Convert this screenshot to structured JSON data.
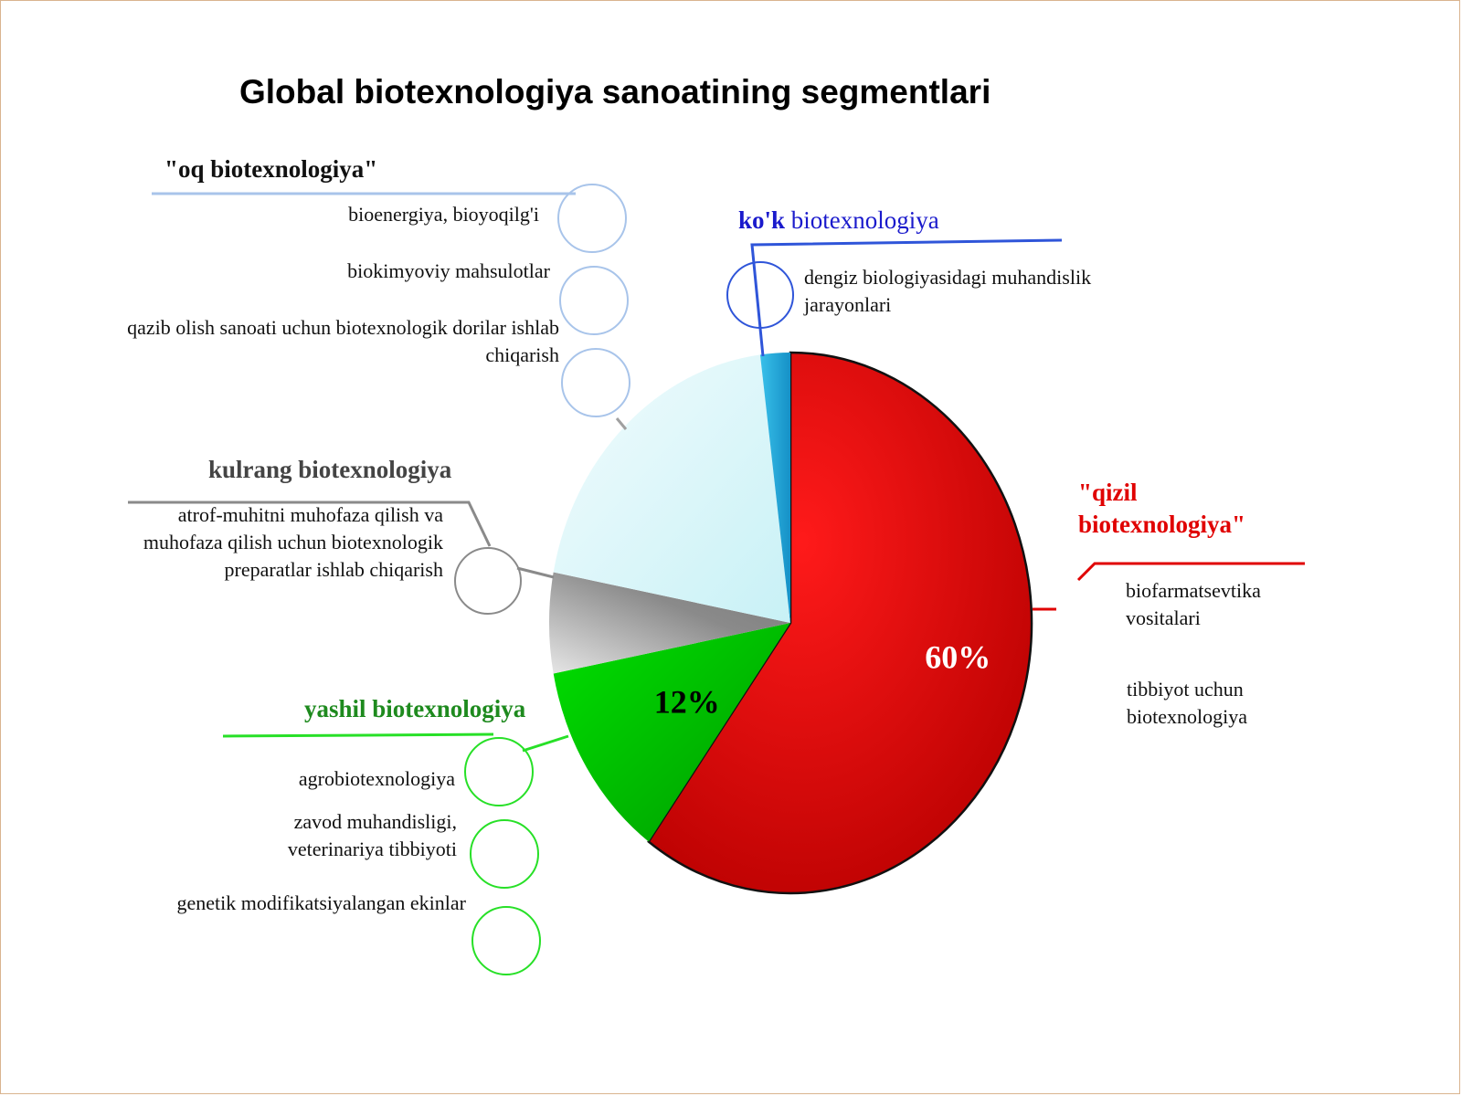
{
  "title": "Global biotexnologiya sanoatining segmentlari",
  "colors": {
    "red": "#e00000",
    "green": "#00c800",
    "white_segment": "#d9f6fa",
    "blue": "#1fa8d8",
    "grey": "#8a8a8a",
    "label_blue": "#1a1acc",
    "label_green": "#1e8a1e",
    "label_grey": "#444444",
    "label_red": "#e00000"
  },
  "groups": {
    "oq": {
      "title": "\"oq biotexnologiya\"",
      "items": [
        "bioenergiya, bioyoqilg'i",
        "biokimyoviy mahsulotlar",
        "qazib olish sanoati uchun biotexnologik dorilar ishlab chiqarish"
      ]
    },
    "kok": {
      "title_bold": "ko'k",
      "title_rest": " biotexnologiya",
      "items": [
        "dengiz biologiyasidagi muhandislik jarayonlari"
      ]
    },
    "kulrang": {
      "title": "kulrang biotexnologiya",
      "items": [
        "atrof-muhitni muhofaza qilish va muhofaza qilish uchun biotexnologik preparatlar ishlab chiqarish"
      ]
    },
    "qizil": {
      "title_line1": "\"qizil",
      "title_line2": "biotexnologiya\"",
      "items": [
        "biofarmatsevtika vositalari",
        "tibbiyot uchun biotexnologiya"
      ]
    },
    "yashil": {
      "title": "yashil biotexnologiya",
      "items": [
        "agrobiotexnologiya",
        "zavod muhandisligi, veterinariya tibbiyoti",
        "genetik modifikatsiyalangan ekinlar"
      ]
    }
  },
  "chart_data": {
    "type": "pie",
    "title": "Global biotexnologiya sanoatining segmentlari",
    "slices": [
      {
        "name": "\"qizil biotexnologiya\"",
        "value": 60,
        "color": "#e00000",
        "label": "60%"
      },
      {
        "name": "yashil biotexnologiya",
        "value": 12,
        "color": "#00c800",
        "label": "12%"
      },
      {
        "name": "kulrang biotexnologiya",
        "value": 6,
        "color": "#8a8a8a"
      },
      {
        "name": "\"oq biotexnologiya\"",
        "value": 20,
        "color": "#d9f6fa"
      },
      {
        "name": "ko'k biotexnologiya",
        "value": 2,
        "color": "#1fa8d8"
      }
    ]
  }
}
